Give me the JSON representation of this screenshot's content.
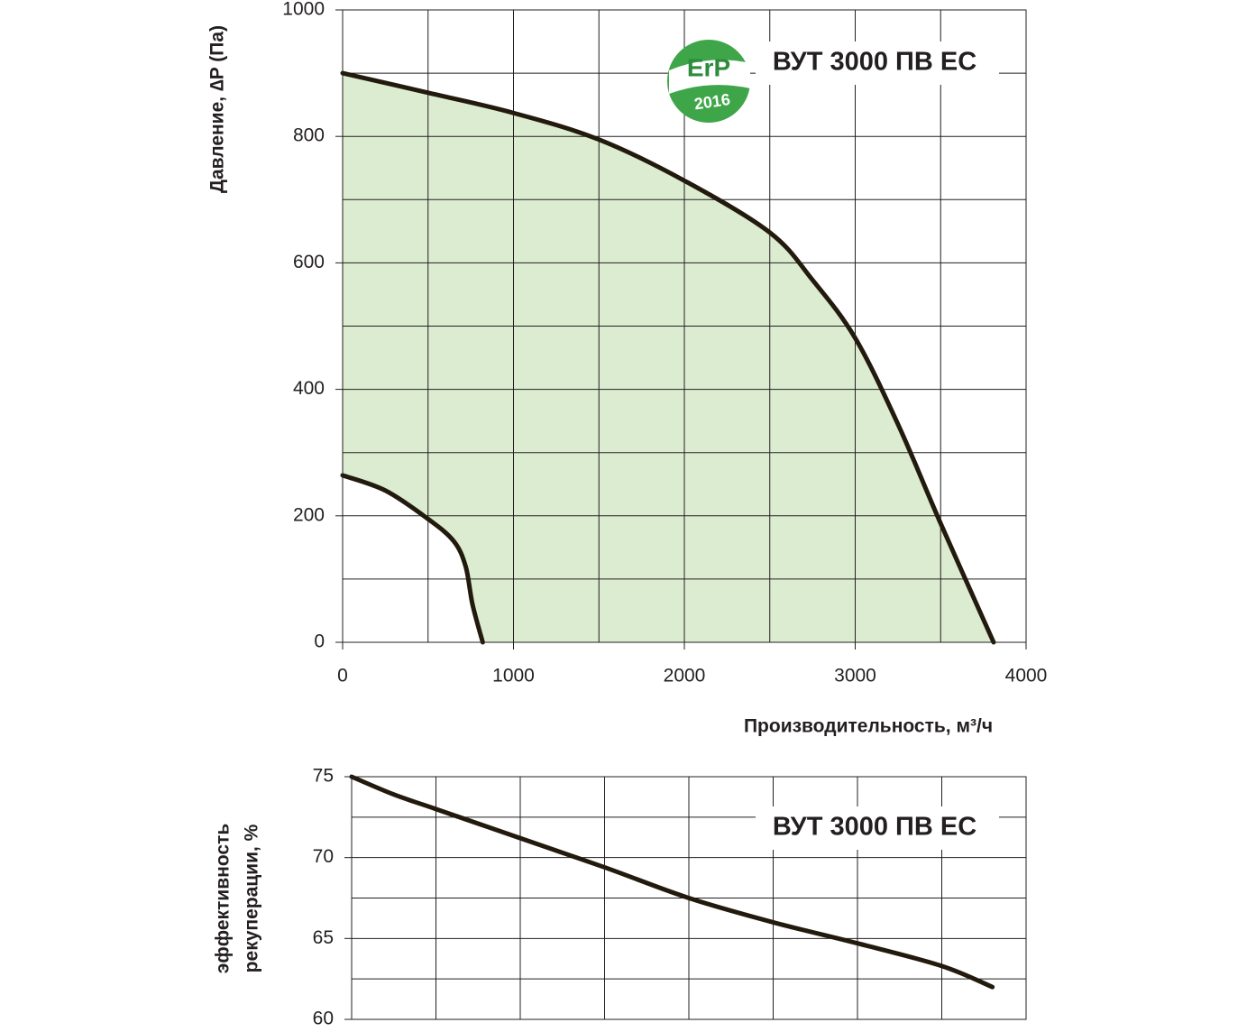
{
  "chart_data": [
    {
      "type": "area",
      "title": "ВУТ 3000 ПВ ЕС",
      "logo": {
        "top": "ErP",
        "bottom": "2016"
      },
      "ylabel": "Давление, ∆P (Па)",
      "xlabel": "Производительность,  м³/ч",
      "xlim": [
        0,
        4000
      ],
      "ylim": [
        0,
        1000
      ],
      "xticks": [
        0,
        1000,
        2000,
        3000,
        4000
      ],
      "yticks": [
        0,
        200,
        400,
        600,
        800,
        1000
      ],
      "x_grid": [
        0,
        500,
        1000,
        1500,
        2000,
        2500,
        3000,
        3500,
        4000
      ],
      "y_grid": [
        0,
        100,
        200,
        300,
        400,
        500,
        600,
        700,
        800,
        900,
        1000
      ],
      "fill": "#dcecd0",
      "series": [
        {
          "color": "#231a0e",
          "x": [
            0,
            500,
            1000,
            1500,
            2000,
            2500,
            2750,
            3000,
            3250,
            3500,
            3810
          ],
          "values": [
            900,
            869,
            837,
            795,
            730,
            648,
            573,
            481,
            345,
            188,
            0
          ]
        },
        {
          "color": "#231a0e",
          "x": [
            0,
            250,
            500,
            650,
            720,
            760,
            820
          ],
          "values": [
            264,
            240,
            195,
            160,
            120,
            60,
            0
          ]
        }
      ]
    },
    {
      "type": "line",
      "title": "ВУТ 3000 ПВ ЕС",
      "ylabel": [
        "эффективность",
        "рекуперации, %"
      ],
      "xlim": [
        0,
        4000
      ],
      "ylim": [
        60,
        75
      ],
      "yticks": [
        60,
        65,
        70,
        75
      ],
      "x_grid": [
        0,
        500,
        1000,
        1500,
        2000,
        2500,
        3000,
        3500,
        4000
      ],
      "y_grid": [
        60,
        62.5,
        65,
        67.5,
        70,
        72.5,
        75
      ],
      "series": [
        {
          "color": "#231a0e",
          "x": [
            0,
            250,
            500,
            1000,
            1500,
            2000,
            2500,
            3000,
            3500,
            3800
          ],
          "values": [
            75,
            73.9,
            73.0,
            71.2,
            69.4,
            67.5,
            66.0,
            64.7,
            63.3,
            62.0
          ]
        }
      ]
    }
  ]
}
